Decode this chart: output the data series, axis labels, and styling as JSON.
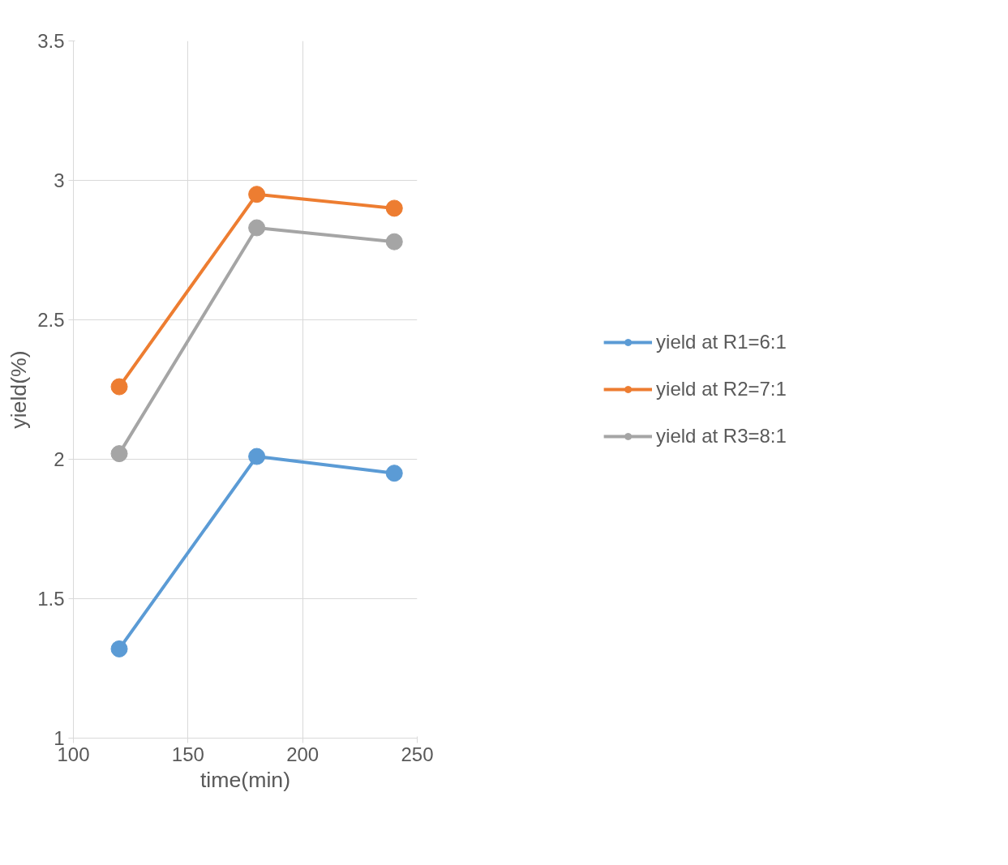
{
  "chart_data": {
    "type": "line",
    "xlabel": "time(min)",
    "ylabel": "yield(%)",
    "x": [
      120,
      180,
      240
    ],
    "series": [
      {
        "name": "yield at R1=6:1",
        "color": "#5b9bd5",
        "values": [
          1.32,
          2.01,
          1.95
        ]
      },
      {
        "name": "yield at R2=7:1",
        "color": "#ed7d31",
        "values": [
          2.26,
          2.95,
          2.9
        ]
      },
      {
        "name": "yield at R3=8:1",
        "color": "#a5a5a5",
        "values": [
          2.02,
          2.83,
          2.78
        ]
      }
    ],
    "xlim": [
      100,
      250
    ],
    "xticks": [
      100,
      150,
      200,
      250
    ],
    "ylim": [
      1,
      3.5
    ],
    "yticks": [
      1,
      1.5,
      2,
      2.5,
      3,
      3.5
    ],
    "grid": true,
    "legend": "right",
    "marker": "circle",
    "line_style": "solid"
  }
}
